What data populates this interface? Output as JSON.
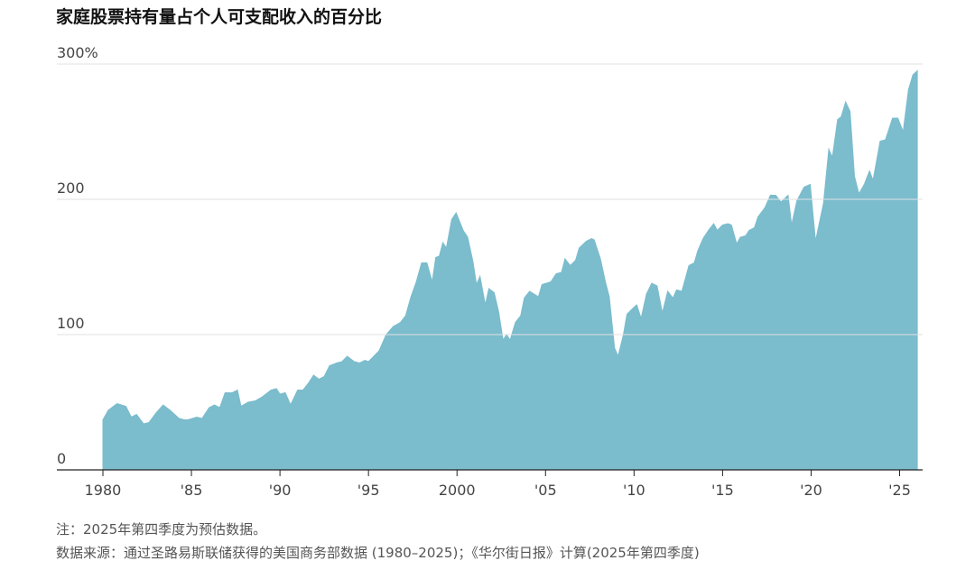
{
  "chart_data": {
    "type": "area",
    "title": "家庭股票持有量占个人可支配收入的百分比",
    "notes": [
      "注：2025年第四季度为预估数据。",
      "数据来源：通过圣路易斯联储获得的美国商务部数据 (1980–2025)；《华尔街日报》计算(2025年第四季度)"
    ],
    "color": "#7bbccd",
    "grid": true,
    "x": [
      1980,
      1980.3,
      1980.8,
      1981.3,
      1981.6,
      1981.9,
      1982.3,
      1982.6,
      1983,
      1983.4,
      1983.8,
      1984.3,
      1984.6,
      1984.8,
      1985.3,
      1985.6,
      1986,
      1986.3,
      1986.6,
      1986.9,
      1987.3,
      1987.6,
      1987.8,
      1988.2,
      1988.6,
      1989,
      1989.5,
      1989.8,
      1990,
      1990.3,
      1990.6,
      1991,
      1991.3,
      1991.6,
      1991.9,
      1992.2,
      1992.5,
      1992.8,
      1993.2,
      1993.5,
      1993.8,
      1994.2,
      1994.5,
      1994.8,
      1995,
      1995.6,
      1996,
      1996.4,
      1996.8,
      1997.1,
      1997.4,
      1997.7,
      1998,
      1998.3,
      1998.6,
      1998.8,
      1999,
      1999.2,
      1999.4,
      1999.7,
      1999.95,
      2000.35,
      2000.6,
      2000.9,
      2001.1,
      2001.3,
      2001.6,
      2001.8,
      2002.1,
      2002.35,
      2002.6,
      2002.8,
      2003,
      2003.3,
      2003.6,
      2003.8,
      2004.1,
      2004.6,
      2004.8,
      2005.3,
      2005.6,
      2005.9,
      2006.1,
      2006.4,
      2006.7,
      2006.9,
      2007.3,
      2007.6,
      2007.75,
      2008.1,
      2008.4,
      2008.6,
      2008.9,
      2009.1,
      2009.4,
      2009.6,
      2009.9,
      2010.15,
      2010.4,
      2010.7,
      2011,
      2011.3,
      2011.6,
      2011.9,
      2012.2,
      2012.4,
      2012.7,
      2013.1,
      2013.4,
      2013.6,
      2013.9,
      2014.2,
      2014.5,
      2014.7,
      2015,
      2015.3,
      2015.5,
      2015.8,
      2016,
      2016.3,
      2016.5,
      2016.8,
      2017,
      2017.4,
      2017.7,
      2018,
      2018.3,
      2018.7,
      2018.9,
      2019.2,
      2019.6,
      2019.95,
      2020.25,
      2020.7,
      2021,
      2021.2,
      2021.5,
      2021.7,
      2021.95,
      2022.2,
      2022.45,
      2022.7,
      2023,
      2023.3,
      2023.5,
      2023.9,
      2024.2,
      2024.6,
      2024.9,
      2025.2,
      2025.5,
      2025.75,
      2026
    ],
    "values": [
      37,
      44,
      49,
      47,
      39,
      41,
      34,
      35,
      42,
      48,
      44,
      38,
      37,
      37,
      39,
      38,
      46,
      48,
      46,
      57,
      57,
      59,
      47,
      50,
      51,
      54,
      59,
      60,
      56,
      57,
      48,
      59,
      59,
      64,
      70,
      67,
      69,
      77,
      79,
      80,
      84,
      80,
      79,
      81,
      80,
      88,
      100,
      106,
      109,
      114,
      128,
      139,
      153,
      153,
      139,
      157,
      158,
      168,
      164,
      185,
      190,
      177,
      172,
      154,
      137,
      143,
      122,
      134,
      131,
      117,
      96,
      100,
      96,
      109,
      114,
      127,
      132,
      128,
      137,
      139,
      145,
      146,
      156,
      151,
      155,
      164,
      169,
      171,
      170,
      156,
      138,
      128,
      90,
      84,
      100,
      115,
      119,
      122,
      112,
      130,
      138,
      136,
      116,
      132,
      127,
      133,
      132,
      151,
      153,
      162,
      171,
      177,
      182,
      177,
      181,
      182,
      181,
      167,
      172,
      173,
      177,
      179,
      187,
      194,
      203,
      203,
      198,
      203,
      181,
      199,
      209,
      211,
      169,
      197,
      237,
      231,
      259,
      261,
      272,
      265,
      217,
      204,
      211,
      221,
      214,
      243,
      244,
      260,
      260,
      250,
      281,
      292,
      295
    ],
    "xlim": [
      1977.4,
      2026.3
    ],
    "ylim": [
      0,
      300
    ],
    "xticks": [
      1980,
      {
        "value": 1985,
        "label": "'85"
      },
      {
        "value": 1990,
        "label": "'90"
      },
      {
        "value": 1995,
        "label": "'95"
      },
      2000,
      {
        "value": 2005,
        "label": "'05"
      },
      {
        "value": 2010,
        "label": "'10"
      },
      {
        "value": 2015,
        "label": "'15"
      },
      {
        "value": 2020,
        "label": "'20"
      },
      {
        "value": 2025,
        "label": "'25"
      }
    ],
    "yticks": [
      0,
      100,
      200,
      {
        "value": 300,
        "label": "300%"
      }
    ]
  }
}
